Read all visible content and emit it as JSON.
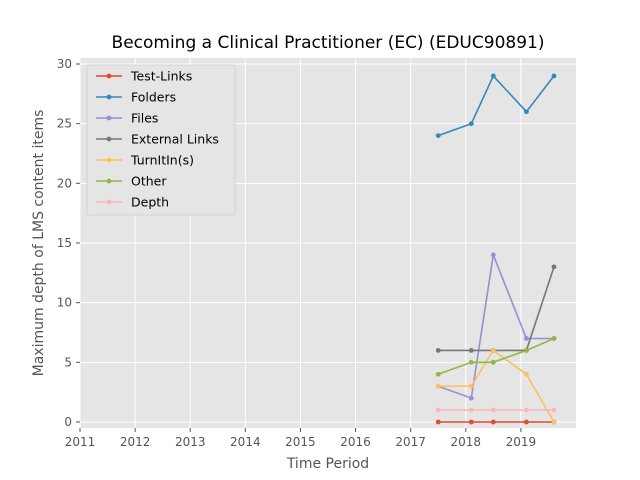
{
  "chart_data": {
    "type": "line",
    "title": "Becoming a Clinical Practitioner (EC) (EDUC90891)",
    "xlabel": "Time Period",
    "ylabel": "Maximum depth of LMS content items",
    "xlim": [
      2011,
      2020
    ],
    "ylim": [
      0,
      30
    ],
    "x_ticks": [
      "2011",
      "2012",
      "2013",
      "2014",
      "2015",
      "2016",
      "2017",
      "2018",
      "2019"
    ],
    "y_ticks": [
      "0",
      "5",
      "10",
      "15",
      "20",
      "25",
      "30"
    ],
    "grid": true,
    "legend_position": "upper-left",
    "x": [
      2017.5,
      2018.1,
      2018.5,
      2019.1,
      2019.6
    ],
    "series": [
      {
        "name": "Test-Links",
        "color": "#E24A33",
        "values": [
          0,
          0,
          0,
          0,
          0
        ]
      },
      {
        "name": "Folders",
        "color": "#348ABD",
        "values": [
          24,
          25,
          29,
          26,
          29
        ]
      },
      {
        "name": "Files",
        "color": "#988ED5",
        "values": [
          3,
          2,
          14,
          7,
          7
        ]
      },
      {
        "name": "External Links",
        "color": "#777777",
        "values": [
          6,
          6,
          6,
          6,
          13
        ]
      },
      {
        "name": "TurnItIn(s)",
        "color": "#FBC15E",
        "values": [
          3,
          3,
          6,
          4,
          0
        ]
      },
      {
        "name": "Other",
        "color": "#8EBA42",
        "values": [
          4,
          5,
          5,
          6,
          7
        ]
      },
      {
        "name": "Depth",
        "color": "#FFB5B8",
        "values": [
          1,
          1,
          1,
          1,
          1
        ]
      }
    ]
  }
}
